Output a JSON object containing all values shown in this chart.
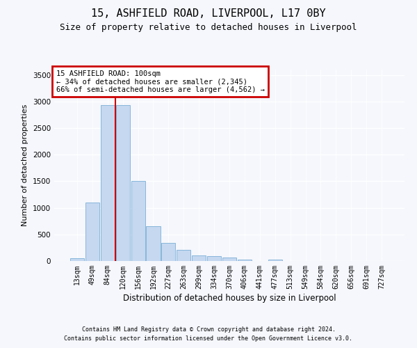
{
  "title1": "15, ASHFIELD ROAD, LIVERPOOL, L17 0BY",
  "title2": "Size of property relative to detached houses in Liverpool",
  "xlabel": "Distribution of detached houses by size in Liverpool",
  "ylabel": "Number of detached properties",
  "bin_labels": [
    "13sqm",
    "49sqm",
    "84sqm",
    "120sqm",
    "156sqm",
    "192sqm",
    "227sqm",
    "263sqm",
    "299sqm",
    "334sqm",
    "370sqm",
    "406sqm",
    "441sqm",
    "477sqm",
    "513sqm",
    "549sqm",
    "584sqm",
    "620sqm",
    "656sqm",
    "691sqm",
    "727sqm"
  ],
  "bar_heights": [
    50,
    1100,
    2930,
    2930,
    1510,
    650,
    340,
    215,
    105,
    95,
    65,
    30,
    5,
    30,
    5,
    2,
    2,
    2,
    2,
    2,
    2
  ],
  "bar_color": "#c5d8f0",
  "bar_edge_color": "#7aaed6",
  "vline_color": "#cc0000",
  "vline_pos": 2.5,
  "annotation_title": "15 ASHFIELD ROAD: 100sqm",
  "annotation_line1": "← 34% of detached houses are smaller (2,345)",
  "annotation_line2": "66% of semi-detached houses are larger (4,562) →",
  "ann_box_fc": "#ffffff",
  "ann_box_ec": "#cc0000",
  "ylim": [
    0,
    3600
  ],
  "yticks": [
    0,
    500,
    1000,
    1500,
    2000,
    2500,
    3000,
    3500
  ],
  "bg_color": "#f5f7fc",
  "grid_color": "#ffffff",
  "footer1": "Contains HM Land Registry data © Crown copyright and database right 2024.",
  "footer2": "Contains public sector information licensed under the Open Government Licence v3.0.",
  "title1_fontsize": 11,
  "title2_fontsize": 9,
  "ylabel_fontsize": 8,
  "xlabel_fontsize": 8.5,
  "tick_fontsize": 7,
  "ann_fontsize": 7.5,
  "footer_fontsize": 6
}
